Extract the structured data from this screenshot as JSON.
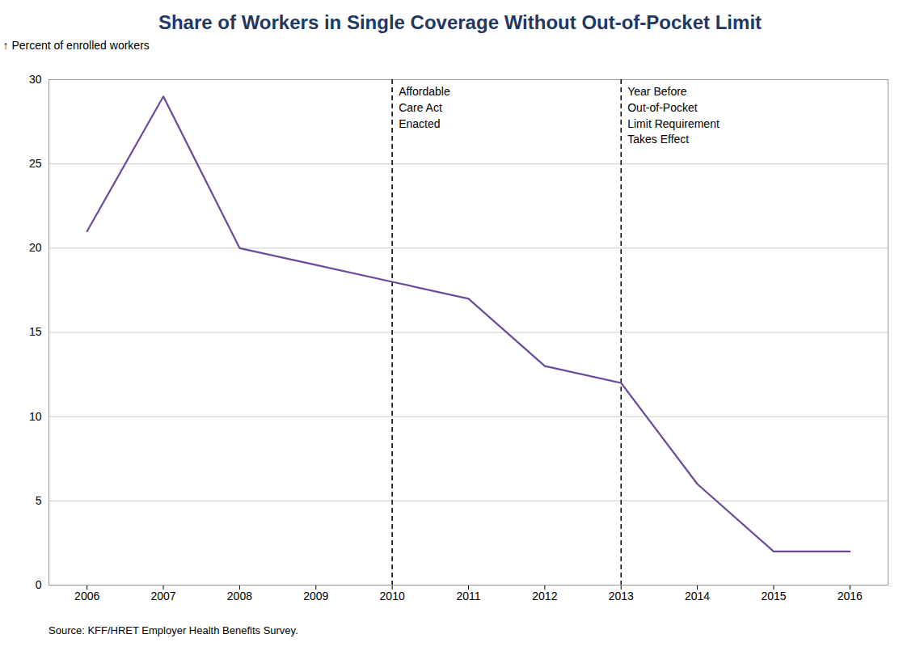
{
  "chart_data": {
    "type": "line",
    "title": "Share of Workers in Single Coverage Without Out-of-Pocket Limit",
    "ylabel": "Percent of enrolled workers",
    "source": "Source: KFF/HRET Employer Health Benefits Survey.",
    "x": [
      2006,
      2007,
      2008,
      2009,
      2010,
      2011,
      2012,
      2013,
      2014,
      2015,
      2016
    ],
    "values": [
      21,
      29,
      20,
      19,
      18,
      17,
      13,
      12,
      6,
      2,
      2
    ],
    "color": "#6b4b9a",
    "title_color": "#1f3864",
    "xlim": [
      2005.5,
      2016.5
    ],
    "xticks": [
      2006,
      2007,
      2008,
      2009,
      2010,
      2011,
      2012,
      2013,
      2014,
      2015,
      2016
    ],
    "ylim": [
      0,
      30
    ],
    "yticks": [
      0,
      5,
      10,
      15,
      20,
      25,
      30
    ],
    "grid": true,
    "annotations": [
      {
        "x": 2010,
        "text": "Affordable\nCare Act\nEnacted",
        "line_style": "dashed"
      },
      {
        "x": 2013,
        "text": "Year Before\nOut-of-Pocket\nLimit Requirement\nTakes Effect",
        "line_style": "dashed"
      }
    ]
  }
}
